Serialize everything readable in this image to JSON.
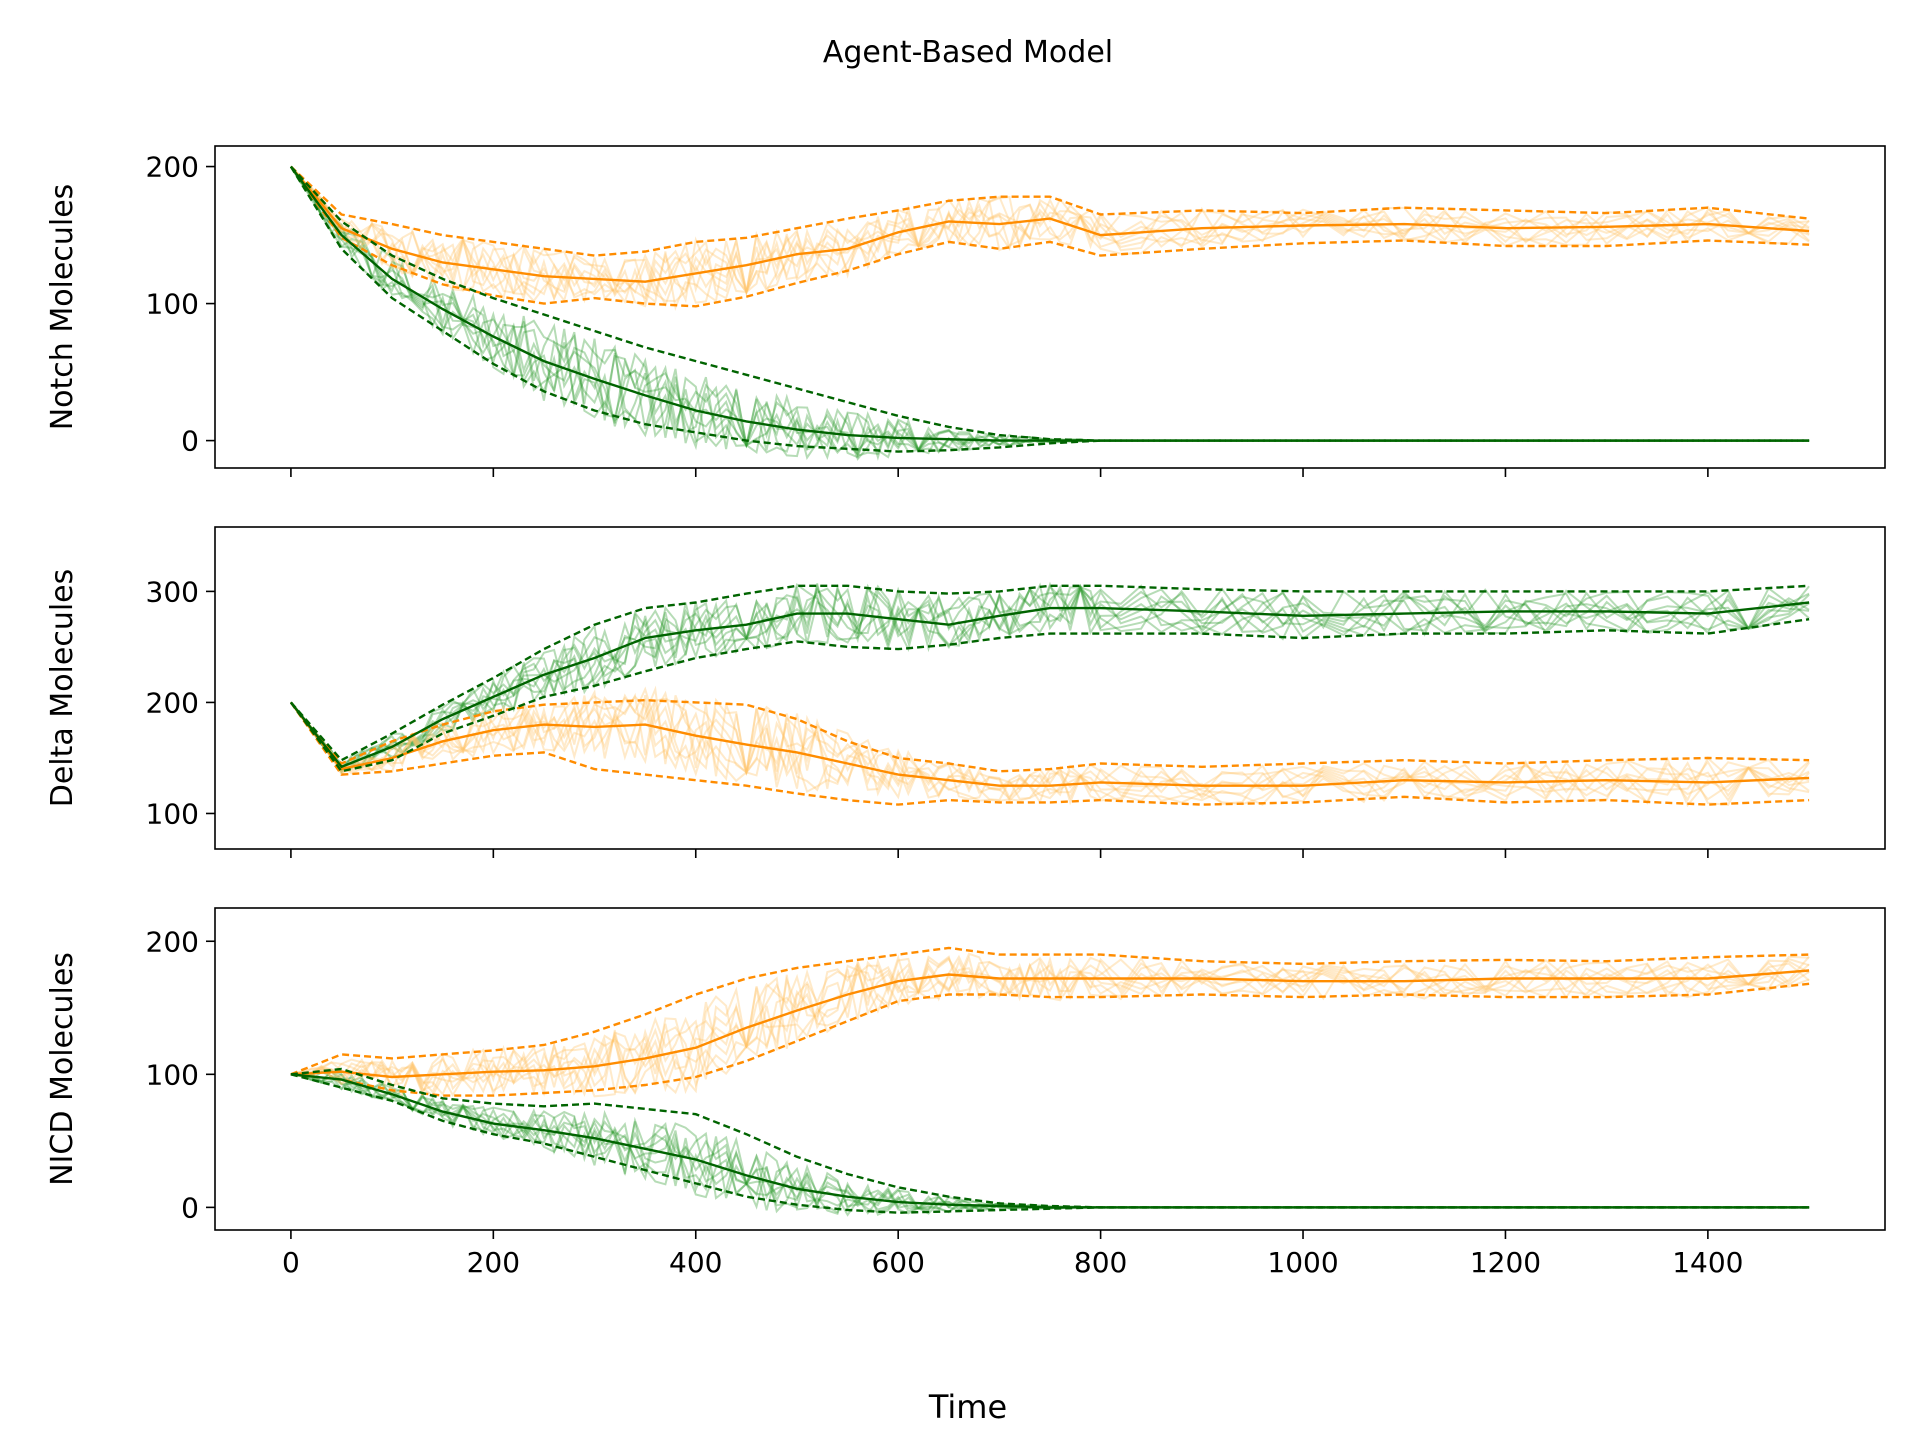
{
  "figure": {
    "title": "Agent-Based Model",
    "xlabel": "Time"
  },
  "colors": {
    "green": "#006400",
    "green_runs": "#2e9a2e",
    "orange": "#ff8c00",
    "orange_runs": "#ffc266"
  },
  "chart_data": [
    {
      "type": "line",
      "ylabel": "Notch Molecules",
      "xlim": [
        -75,
        1575
      ],
      "ylim": [
        -20,
        215
      ],
      "xticks": [
        "0",
        "200",
        "400",
        "600",
        "800",
        "1000",
        "1200",
        "1400"
      ],
      "xtick_values": [
        0,
        200,
        400,
        600,
        800,
        1000,
        1200,
        1400
      ],
      "yticks": [
        "0",
        "100",
        "200"
      ],
      "ytick_values": [
        0,
        100,
        200
      ],
      "x": [
        0,
        50,
        100,
        150,
        200,
        250,
        300,
        350,
        400,
        450,
        500,
        550,
        600,
        650,
        700,
        750,
        800,
        900,
        1000,
        1100,
        1200,
        1300,
        1400,
        1500
      ],
      "series": [
        {
          "color": "orange",
          "style": "mean",
          "values": [
            200,
            155,
            140,
            130,
            125,
            120,
            118,
            116,
            122,
            128,
            136,
            140,
            152,
            160,
            158,
            162,
            150,
            155,
            157,
            158,
            155,
            156,
            158,
            153
          ]
        },
        {
          "color": "orange",
          "style": "upper",
          "values": [
            200,
            165,
            158,
            150,
            145,
            140,
            135,
            138,
            145,
            148,
            155,
            162,
            168,
            175,
            178,
            178,
            165,
            168,
            166,
            170,
            168,
            166,
            170,
            162
          ]
        },
        {
          "color": "orange",
          "style": "lower",
          "values": [
            200,
            148,
            128,
            114,
            106,
            100,
            104,
            100,
            98,
            105,
            115,
            124,
            136,
            145,
            140,
            145,
            135,
            140,
            144,
            146,
            142,
            142,
            146,
            143
          ]
        },
        {
          "color": "green",
          "style": "mean",
          "values": [
            200,
            150,
            118,
            96,
            76,
            58,
            45,
            33,
            22,
            14,
            8,
            4,
            2,
            1,
            0,
            0,
            0,
            0,
            0,
            0,
            0,
            0,
            0,
            0
          ]
        },
        {
          "color": "green",
          "style": "upper",
          "values": [
            200,
            160,
            135,
            118,
            104,
            92,
            80,
            68,
            58,
            48,
            38,
            28,
            18,
            10,
            4,
            1,
            0,
            0,
            0,
            0,
            0,
            0,
            0,
            0
          ]
        },
        {
          "color": "green",
          "style": "lower",
          "values": [
            200,
            140,
            104,
            80,
            56,
            36,
            22,
            12,
            6,
            0,
            -4,
            -6,
            -8,
            -7,
            -5,
            -2,
            0,
            0,
            0,
            0,
            0,
            0,
            0,
            0
          ]
        }
      ]
    },
    {
      "type": "line",
      "ylabel": "Delta Molecules",
      "xlim": [
        -75,
        1575
      ],
      "ylim": [
        68,
        358
      ],
      "xticks": [
        "0",
        "200",
        "400",
        "600",
        "800",
        "1000",
        "1200",
        "1400"
      ],
      "xtick_values": [
        0,
        200,
        400,
        600,
        800,
        1000,
        1200,
        1400
      ],
      "yticks": [
        "100",
        "200",
        "300"
      ],
      "ytick_values": [
        100,
        200,
        300
      ],
      "x": [
        0,
        50,
        100,
        150,
        200,
        250,
        300,
        350,
        400,
        450,
        500,
        550,
        600,
        650,
        700,
        750,
        800,
        900,
        1000,
        1100,
        1200,
        1300,
        1400,
        1500
      ],
      "series": [
        {
          "color": "orange",
          "style": "mean",
          "values": [
            200,
            140,
            150,
            165,
            175,
            180,
            178,
            180,
            170,
            162,
            155,
            145,
            135,
            130,
            125,
            125,
            128,
            125,
            125,
            130,
            128,
            130,
            128,
            132
          ]
        },
        {
          "color": "orange",
          "style": "upper",
          "values": [
            200,
            145,
            165,
            180,
            192,
            198,
            200,
            202,
            200,
            198,
            185,
            165,
            150,
            145,
            138,
            140,
            145,
            142,
            145,
            148,
            145,
            148,
            150,
            148
          ]
        },
        {
          "color": "orange",
          "style": "lower",
          "values": [
            200,
            135,
            138,
            145,
            152,
            155,
            140,
            135,
            130,
            125,
            118,
            112,
            108,
            112,
            110,
            110,
            112,
            108,
            110,
            115,
            110,
            112,
            108,
            112
          ]
        },
        {
          "color": "green",
          "style": "mean",
          "values": [
            200,
            142,
            160,
            185,
            205,
            225,
            240,
            258,
            265,
            270,
            280,
            280,
            275,
            270,
            278,
            285,
            285,
            282,
            278,
            280,
            282,
            282,
            280,
            290
          ]
        },
        {
          "color": "green",
          "style": "upper",
          "values": [
            200,
            148,
            172,
            198,
            222,
            248,
            270,
            285,
            290,
            298,
            305,
            305,
            300,
            298,
            300,
            305,
            305,
            302,
            300,
            300,
            300,
            300,
            300,
            305
          ]
        },
        {
          "color": "green",
          "style": "lower",
          "values": [
            200,
            138,
            148,
            172,
            188,
            205,
            215,
            228,
            240,
            248,
            255,
            250,
            248,
            252,
            258,
            262,
            262,
            262,
            258,
            262,
            262,
            265,
            262,
            275
          ]
        }
      ]
    },
    {
      "type": "line",
      "ylabel": "NICD Molecules",
      "xlim": [
        -75,
        1575
      ],
      "ylim": [
        -17,
        225
      ],
      "xticks": [
        "0",
        "200",
        "400",
        "600",
        "800",
        "1000",
        "1200",
        "1400"
      ],
      "xtick_values": [
        0,
        200,
        400,
        600,
        800,
        1000,
        1200,
        1400
      ],
      "yticks": [
        "0",
        "100",
        "200"
      ],
      "ytick_values": [
        0,
        100,
        200
      ],
      "x": [
        0,
        50,
        100,
        150,
        200,
        250,
        300,
        350,
        400,
        450,
        500,
        550,
        600,
        650,
        700,
        750,
        800,
        900,
        1000,
        1100,
        1200,
        1300,
        1400,
        1500
      ],
      "series": [
        {
          "color": "orange",
          "style": "mean",
          "values": [
            100,
            102,
            98,
            100,
            102,
            103,
            106,
            112,
            120,
            135,
            148,
            160,
            170,
            175,
            172,
            172,
            172,
            172,
            170,
            170,
            172,
            172,
            172,
            178
          ]
        },
        {
          "color": "orange",
          "style": "upper",
          "values": [
            100,
            115,
            112,
            115,
            118,
            122,
            132,
            145,
            160,
            172,
            180,
            185,
            190,
            195,
            190,
            190,
            190,
            185,
            183,
            185,
            186,
            185,
            188,
            190
          ]
        },
        {
          "color": "orange",
          "style": "lower",
          "values": [
            100,
            96,
            88,
            84,
            84,
            86,
            88,
            92,
            98,
            110,
            125,
            140,
            155,
            160,
            160,
            158,
            158,
            160,
            158,
            160,
            158,
            158,
            160,
            168
          ]
        },
        {
          "color": "green",
          "style": "mean",
          "values": [
            100,
            96,
            85,
            72,
            63,
            58,
            52,
            44,
            36,
            24,
            14,
            8,
            4,
            2,
            1,
            0,
            0,
            0,
            0,
            0,
            0,
            0,
            0,
            0
          ]
        },
        {
          "color": "green",
          "style": "upper",
          "values": [
            100,
            104,
            92,
            82,
            78,
            76,
            78,
            74,
            70,
            55,
            38,
            25,
            15,
            8,
            3,
            1,
            0,
            0,
            0,
            0,
            0,
            0,
            0,
            0
          ]
        },
        {
          "color": "green",
          "style": "lower",
          "values": [
            100,
            90,
            80,
            65,
            55,
            48,
            38,
            28,
            18,
            8,
            2,
            -2,
            -4,
            -3,
            -2,
            -1,
            0,
            0,
            0,
            0,
            0,
            0,
            0,
            0
          ]
        }
      ]
    }
  ]
}
